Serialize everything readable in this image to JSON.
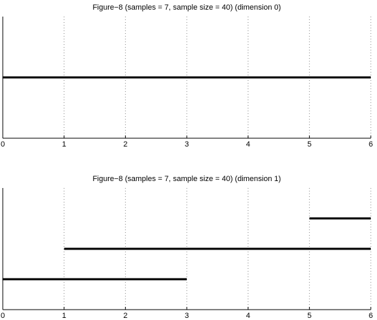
{
  "chart_data": [
    {
      "type": "barcode",
      "title": "Figure−8 (samples = 7, sample size = 40) (dimension 0)",
      "xlim": [
        0,
        6
      ],
      "xticks": [
        0,
        1,
        2,
        3,
        4,
        5,
        6
      ],
      "xtick_labels": [
        "0",
        "1",
        "2",
        "3",
        "4",
        "5",
        "6"
      ],
      "grid": "vertical dotted",
      "intervals": [
        {
          "start": 0,
          "end": 6
        }
      ]
    },
    {
      "type": "barcode",
      "title": "Figure−8 (samples = 7, sample size = 40) (dimension 1)",
      "xlim": [
        0,
        6
      ],
      "xticks": [
        0,
        1,
        2,
        3,
        4,
        5,
        6
      ],
      "xtick_labels": [
        "0",
        "1",
        "2",
        "3",
        "4",
        "5",
        "6"
      ],
      "grid": "vertical dotted",
      "intervals": [
        {
          "start": 0,
          "end": 3
        },
        {
          "start": 1,
          "end": 6
        },
        {
          "start": 5,
          "end": 6
        }
      ]
    }
  ]
}
